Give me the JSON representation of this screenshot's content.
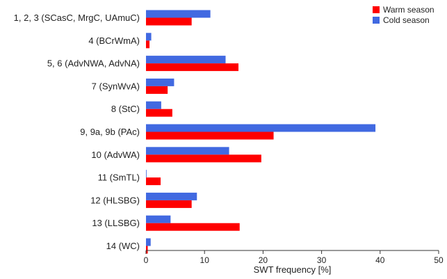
{
  "chart_data": {
    "type": "bar",
    "orientation": "horizontal",
    "title": "",
    "xlabel": "SWT frequency [%]",
    "ylabel": "",
    "xlim": [
      0,
      50
    ],
    "xticks": [
      "0",
      "10",
      "20",
      "30",
      "40",
      "50"
    ],
    "grid": false,
    "legend_position": "top-right",
    "categories": [
      "1, 2, 3 (SCasC, MrgC, UAmuC)",
      "4 (BCrWmA)",
      "5, 6 (AdvNWA, AdvNA)",
      "7 (SynWvA)",
      "8 (StC)",
      "9, 9a, 9b (PAc)",
      "10 (AdvWA)",
      "11 (SmTL)",
      "12 (HLSBG)",
      "13 (LLSBG)",
      "14 (WC)"
    ],
    "series": [
      {
        "name": "Warm season",
        "color": "#ff0000",
        "values": [
          7.8,
          0.6,
          15.8,
          3.7,
          4.5,
          21.8,
          19.7,
          2.5,
          7.8,
          16.0,
          0.3
        ]
      },
      {
        "name": "Cold season",
        "color": "#4169e1",
        "values": [
          11.0,
          0.9,
          13.6,
          4.8,
          2.6,
          39.2,
          14.2,
          0.1,
          8.7,
          4.2,
          0.8
        ]
      }
    ]
  }
}
